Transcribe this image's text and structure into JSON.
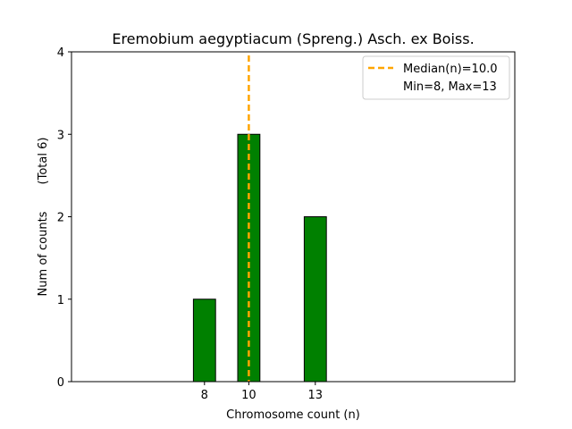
{
  "chart_data": {
    "type": "bar",
    "title": "Eremobium aegyptiacum (Spreng.) Asch. ex Boiss.",
    "xlabel": "Chromosome count (n)",
    "ylabel": "Num of counts",
    "ylabel_extra": "(Total 6)",
    "bars": [
      {
        "x": 8,
        "value": 1
      },
      {
        "x": 10,
        "value": 3
      },
      {
        "x": 13,
        "value": 2
      }
    ],
    "xticks": [
      8,
      10,
      13
    ],
    "yticks": [
      0,
      1,
      2,
      3,
      4
    ],
    "xlim": [
      2,
      22
    ],
    "ylim": [
      0,
      4
    ],
    "median": 10.0,
    "bar_color": "#008000",
    "bar_edge_color": "#000000",
    "median_color": "#ffa500",
    "legend": {
      "position": "upper right",
      "entries": [
        "Median(n)=10.0",
        "Min=8, Max=13"
      ]
    },
    "grid": false
  }
}
